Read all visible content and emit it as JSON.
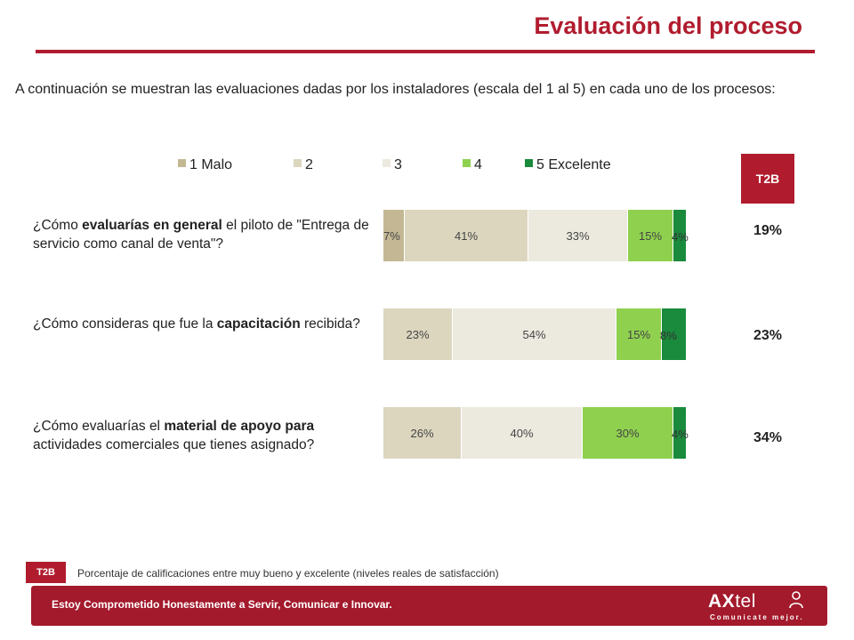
{
  "header": {
    "title": "Evaluación del proceso"
  },
  "intro": "A continuación se muestran las evaluaciones dadas por los instaladores (escala del 1 al 5) en cada uno de los procesos:",
  "t2b_header": "T2B",
  "colors": {
    "accent": "#b01c2e",
    "footer": "#a31a2c",
    "c1": "#c4b894",
    "c2": "#dcd6bf",
    "c3": "#ece9df",
    "c4": "#8fd14f",
    "c5": "#1a8a3c"
  },
  "chart_data": {
    "type": "bar",
    "orientation": "horizontal",
    "stacked": true,
    "categories": [
      "¿Cómo evaluarías en general el piloto de \"Entrega de servicio como canal de venta\"?",
      "¿Cómo consideras que fue la capacitación recibida?",
      "¿Cómo evaluarías el material de apoyo para actividades comerciales que tienes asignado?"
    ],
    "series": [
      {
        "name": "1 Malo",
        "color": "#c4b894",
        "values": [
          7,
          0,
          0
        ]
      },
      {
        "name": "2",
        "color": "#dcd6bf",
        "values": [
          41,
          23,
          26
        ]
      },
      {
        "name": "3",
        "color": "#ece9df",
        "values": [
          33,
          54,
          40
        ]
      },
      {
        "name": "4",
        "color": "#8fd14f",
        "values": [
          15,
          15,
          30
        ]
      },
      {
        "name": "5 Excelente",
        "color": "#1a8a3c",
        "values": [
          4,
          8,
          4
        ]
      }
    ],
    "t2b": [
      "19%",
      "23%",
      "34%"
    ],
    "legend": "top"
  },
  "questions": [
    {
      "pre": "¿Cómo ",
      "bold": "evaluarías en general",
      "post": " el piloto de \"Entrega de servicio como canal de venta\"?"
    },
    {
      "pre": "¿Cómo consideras que fue la ",
      "bold": "capacitación",
      "post": " recibida?"
    },
    {
      "pre": "¿Cómo evaluarías el ",
      "bold": "material de apoyo para",
      "post": " actividades comerciales que tienes asignado?"
    }
  ],
  "note": {
    "badge": "T2B",
    "text": "Porcentaje de calificaciones entre muy bueno y excelente (niveles reales de satisfacción)"
  },
  "footer": {
    "slogan": "Estoy Comprometido Honestamente a Servir, Comunicar e Innovar.",
    "logo_bold": "AX",
    "logo_rest": "tel",
    "logo_tagline": "Comunicate mejor."
  }
}
